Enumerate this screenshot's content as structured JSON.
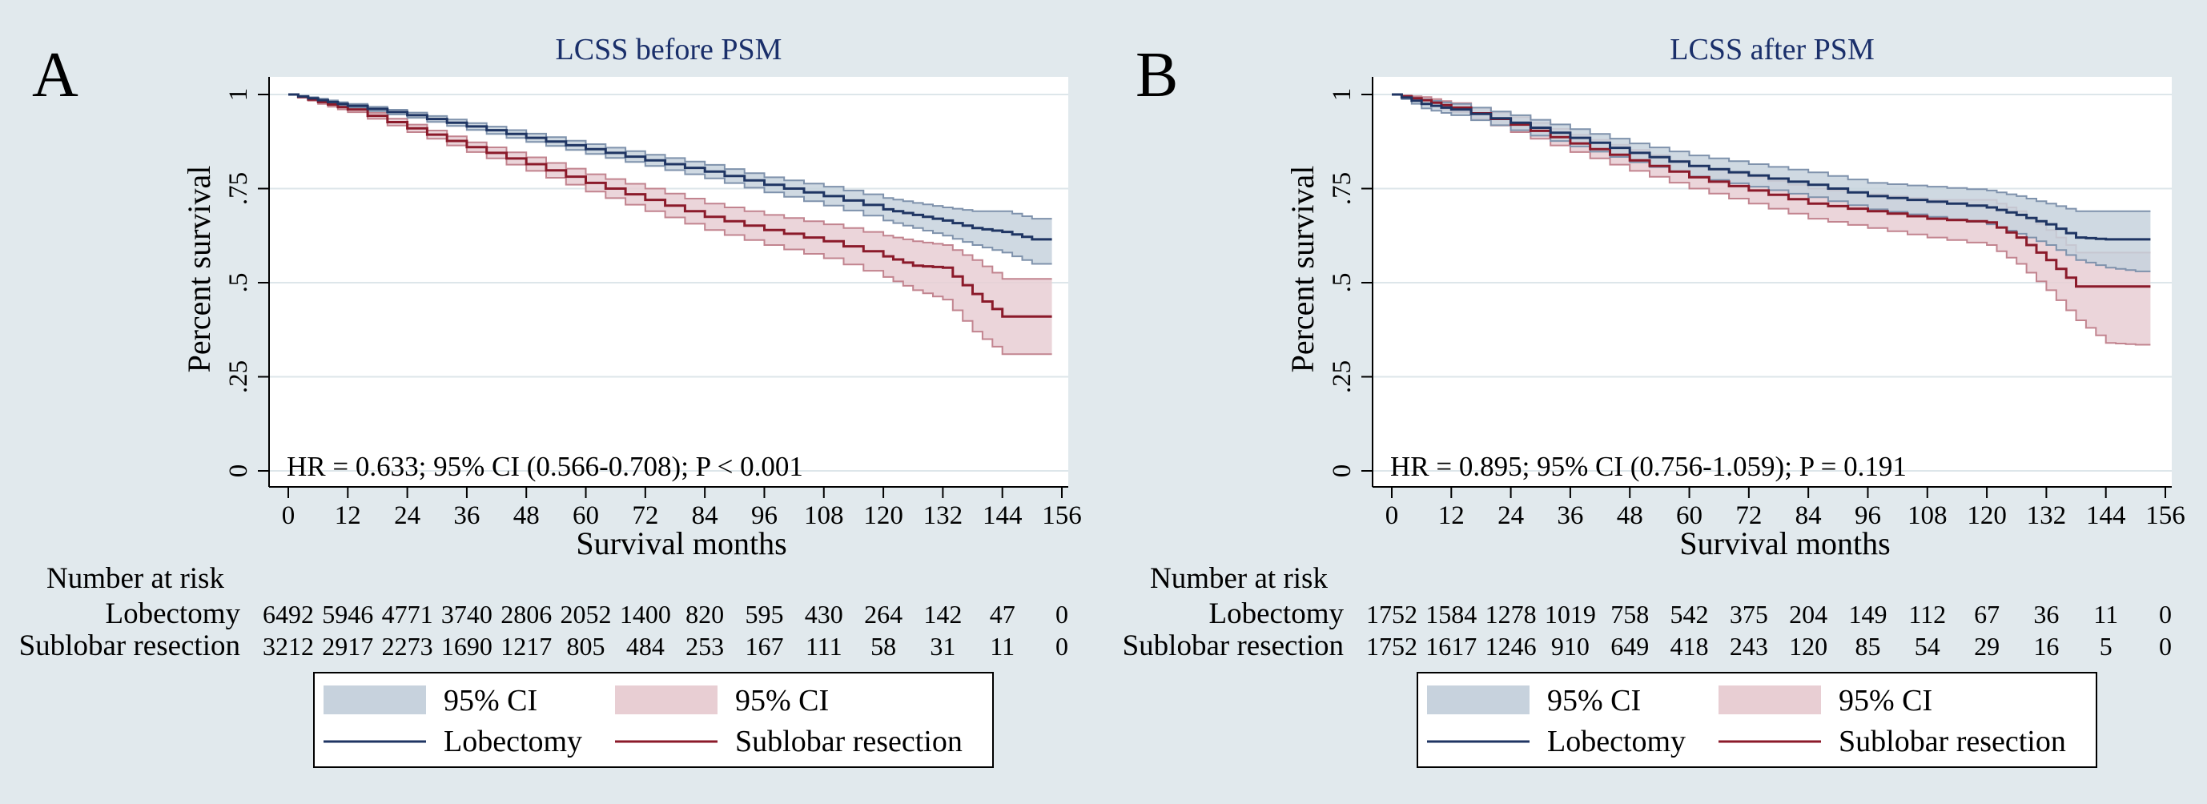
{
  "colors": {
    "background": "#e1e9ed",
    "lobectomy_line": "#1f3563",
    "lobectomy_ci": "#c7d2dd",
    "lobectomy_ci_edge": "#7f92ac",
    "sublobar_line": "#8b1a2a",
    "sublobar_ci": "#e8ced3",
    "sublobar_ci_edge": "#c2848f"
  },
  "chart_data": [
    {
      "type": "line",
      "panel_label": "A",
      "title": "LCSS before PSM",
      "xlabel": "Survival months",
      "ylabel": "Percent survival",
      "xlim": [
        0,
        156
      ],
      "ylim": [
        0,
        1
      ],
      "xticks": [
        "0",
        "12",
        "24",
        "36",
        "48",
        "60",
        "72",
        "84",
        "96",
        "108",
        "120",
        "132",
        "144",
        "156"
      ],
      "yticks": [
        "0",
        ".25",
        ".5",
        ".75",
        "1"
      ],
      "annotation": "HR = 0.633; 95% CI (0.566-0.708); P < 0.001",
      "series": [
        {
          "name": "Lobectomy",
          "x": [
            0,
            6,
            12,
            24,
            36,
            48,
            60,
            72,
            84,
            96,
            108,
            120,
            126,
            132,
            138,
            144,
            150,
            154
          ],
          "values": [
            1,
            0.985,
            0.97,
            0.945,
            0.915,
            0.885,
            0.855,
            0.825,
            0.795,
            0.76,
            0.73,
            0.695,
            0.68,
            0.665,
            0.645,
            0.635,
            0.615,
            0.615
          ],
          "ci_lower": [
            1,
            0.981,
            0.965,
            0.938,
            0.906,
            0.874,
            0.842,
            0.81,
            0.777,
            0.74,
            0.705,
            0.665,
            0.645,
            0.625,
            0.6,
            0.58,
            0.55,
            0.55
          ],
          "ci_upper": [
            1,
            0.989,
            0.975,
            0.952,
            0.924,
            0.896,
            0.868,
            0.84,
            0.813,
            0.78,
            0.755,
            0.725,
            0.712,
            0.7,
            0.69,
            0.69,
            0.67,
            0.67
          ]
        },
        {
          "name": "Sublobar resection",
          "x": [
            0,
            6,
            12,
            24,
            36,
            48,
            60,
            72,
            84,
            96,
            108,
            120,
            126,
            132,
            138,
            144,
            150,
            154
          ],
          "values": [
            1,
            0.98,
            0.96,
            0.91,
            0.86,
            0.815,
            0.765,
            0.72,
            0.675,
            0.64,
            0.61,
            0.57,
            0.545,
            0.54,
            0.47,
            0.41,
            0.41,
            0.41
          ],
          "ci_lower": [
            1,
            0.975,
            0.953,
            0.9,
            0.847,
            0.797,
            0.742,
            0.69,
            0.64,
            0.6,
            0.565,
            0.515,
            0.48,
            0.455,
            0.37,
            0.31,
            0.31,
            0.31
          ],
          "ci_upper": [
            1,
            0.985,
            0.967,
            0.92,
            0.873,
            0.833,
            0.788,
            0.75,
            0.71,
            0.68,
            0.655,
            0.625,
            0.61,
            0.6,
            0.56,
            0.51,
            0.51,
            0.51
          ]
        }
      ],
      "risk_table": {
        "heading": "Number at risk",
        "rows": [
          {
            "label": "Lobectomy",
            "values": [
              "6492",
              "5946",
              "4771",
              "3740",
              "2806",
              "2052",
              "1400",
              "820",
              "595",
              "430",
              "264",
              "142",
              "47",
              "0"
            ]
          },
          {
            "label": "Sublobar resection",
            "values": [
              "3212",
              "2917",
              "2273",
              "1690",
              "1217",
              "805",
              "484",
              "253",
              "167",
              "111",
              "58",
              "31",
              "11",
              "0"
            ]
          }
        ]
      },
      "legend": {
        "ci_label_1": "95% CI",
        "ci_label_2": "95% CI",
        "line_label_1": "Lobectomy",
        "line_label_2": "Sublobar resection"
      }
    },
    {
      "type": "line",
      "panel_label": "B",
      "title": "LCSS after PSM",
      "xlabel": "Survival months",
      "ylabel": "Percent survival",
      "xlim": [
        0,
        156
      ],
      "ylim": [
        0,
        1
      ],
      "xticks": [
        "0",
        "12",
        "24",
        "36",
        "48",
        "60",
        "72",
        "84",
        "96",
        "108",
        "120",
        "132",
        "144",
        "156"
      ],
      "yticks": [
        "0",
        ".25",
        ".5",
        ".75",
        "1"
      ],
      "annotation": "HR = 0.895; 95% CI (0.756-1.059); P = 0.191",
      "series": [
        {
          "name": "Lobectomy",
          "x": [
            0,
            6,
            12,
            24,
            36,
            48,
            60,
            72,
            84,
            96,
            108,
            120,
            126,
            132,
            138,
            144,
            150,
            153
          ],
          "values": [
            1,
            0.975,
            0.96,
            0.925,
            0.885,
            0.845,
            0.81,
            0.785,
            0.76,
            0.73,
            0.715,
            0.7,
            0.68,
            0.655,
            0.62,
            0.615,
            0.615,
            0.615
          ],
          "ci_lower": [
            1,
            0.963,
            0.945,
            0.905,
            0.862,
            0.82,
            0.782,
            0.755,
            0.727,
            0.695,
            0.675,
            0.655,
            0.63,
            0.6,
            0.56,
            0.54,
            0.53,
            0.53
          ],
          "ci_upper": [
            1,
            0.987,
            0.975,
            0.945,
            0.908,
            0.87,
            0.838,
            0.815,
            0.793,
            0.765,
            0.755,
            0.745,
            0.73,
            0.71,
            0.69,
            0.69,
            0.69,
            0.69
          ]
        },
        {
          "name": "Sublobar resection",
          "x": [
            0,
            6,
            12,
            24,
            36,
            48,
            60,
            72,
            84,
            96,
            108,
            120,
            126,
            132,
            138,
            144,
            150,
            153
          ],
          "values": [
            1,
            0.985,
            0.965,
            0.92,
            0.87,
            0.825,
            0.78,
            0.745,
            0.71,
            0.69,
            0.67,
            0.66,
            0.62,
            0.56,
            0.49,
            0.49,
            0.49,
            0.49
          ],
          "ci_lower": [
            1,
            0.977,
            0.953,
            0.9,
            0.847,
            0.797,
            0.75,
            0.71,
            0.67,
            0.645,
            0.62,
            0.6,
            0.55,
            0.48,
            0.4,
            0.34,
            0.335,
            0.335
          ],
          "ci_upper": [
            1,
            0.993,
            0.977,
            0.94,
            0.893,
            0.853,
            0.81,
            0.78,
            0.75,
            0.735,
            0.72,
            0.72,
            0.69,
            0.64,
            0.58,
            0.58,
            0.58,
            0.58
          ]
        }
      ],
      "risk_table": {
        "heading": "Number at risk",
        "rows": [
          {
            "label": "Lobectomy",
            "values": [
              "1752",
              "1584",
              "1278",
              "1019",
              "758",
              "542",
              "375",
              "204",
              "149",
              "112",
              "67",
              "36",
              "11",
              "0"
            ]
          },
          {
            "label": "Sublobar resection",
            "values": [
              "1752",
              "1617",
              "1246",
              "910",
              "649",
              "418",
              "243",
              "120",
              "85",
              "54",
              "29",
              "16",
              "5",
              "0"
            ]
          }
        ]
      },
      "legend": {
        "ci_label_1": "95% CI",
        "ci_label_2": "95% CI",
        "line_label_1": "Lobectomy",
        "line_label_2": "Sublobar resection"
      }
    }
  ]
}
